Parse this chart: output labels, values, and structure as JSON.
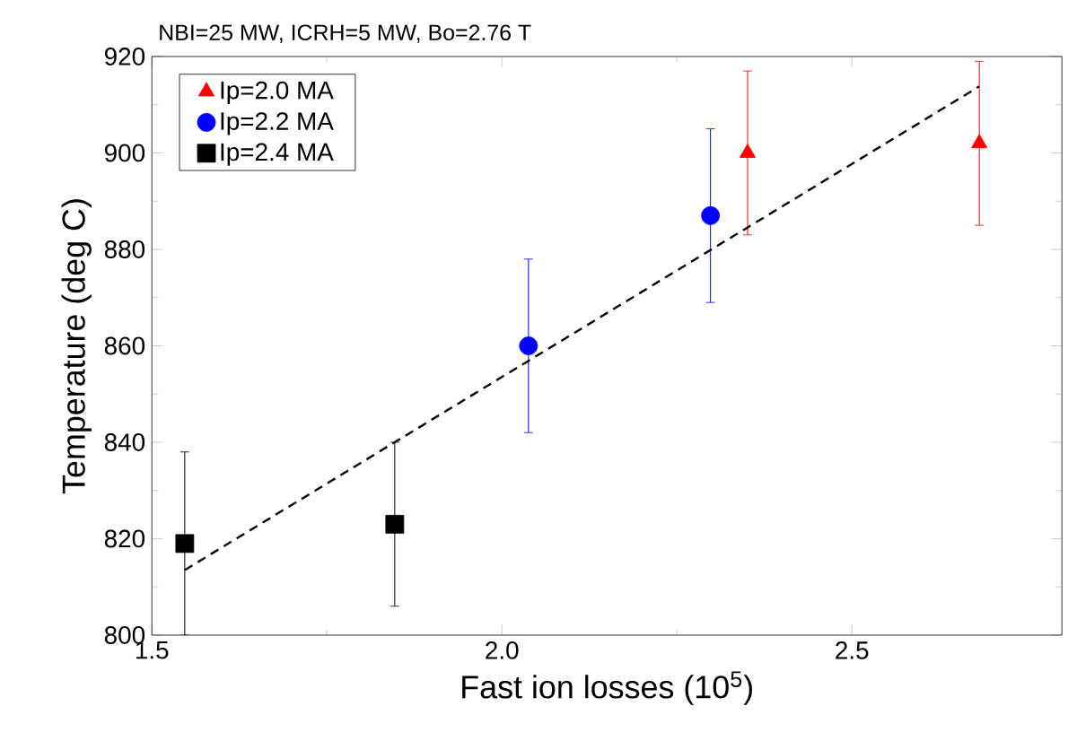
{
  "chart_data": {
    "type": "scatter",
    "title": "NBI=25 MW, ICRH=5 MW, Bo=2.76 T",
    "xlabel": "Fast ion losses (10$^{5}$)",
    "ylabel": "Temperature (deg C)",
    "series": [
      {
        "name": "Ip=2.0 MA",
        "color": "#ff0000",
        "marker": "triangle",
        "x": [
          2.351,
          2.682
        ],
        "values": [
          900,
          902
        ],
        "errors": [
          17,
          17
        ]
      },
      {
        "name": "Ip=2.2 MA",
        "color": "#0000ff",
        "marker": "circle",
        "x": [
          2.038,
          2.298
        ],
        "values": [
          860,
          887
        ],
        "errors": [
          18,
          18
        ]
      },
      {
        "name": "Ip=2.4 MA",
        "color": "#000000",
        "marker": "square",
        "x": [
          1.547,
          1.847
        ],
        "values": [
          819,
          823
        ],
        "errors": [
          19,
          17
        ]
      },
      {
        "type": "line",
        "color": "#000000",
        "line_style": "dashed",
        "marker": "none",
        "x": [
          1.547,
          2.682
        ],
        "values": [
          813.5,
          913.8
        ]
      }
    ],
    "xlim": [
      1.5,
      2.8
    ],
    "ylim": [
      800,
      920
    ],
    "xticks": [
      {
        "value": 1.5,
        "label": "1.5"
      },
      {
        "value": 2,
        "label": "2.0"
      },
      {
        "value": 2.5,
        "label": "2.5"
      }
    ],
    "yticks": [
      800,
      820,
      840,
      860,
      880,
      900,
      920
    ],
    "grid": false,
    "legend": "top left"
  }
}
